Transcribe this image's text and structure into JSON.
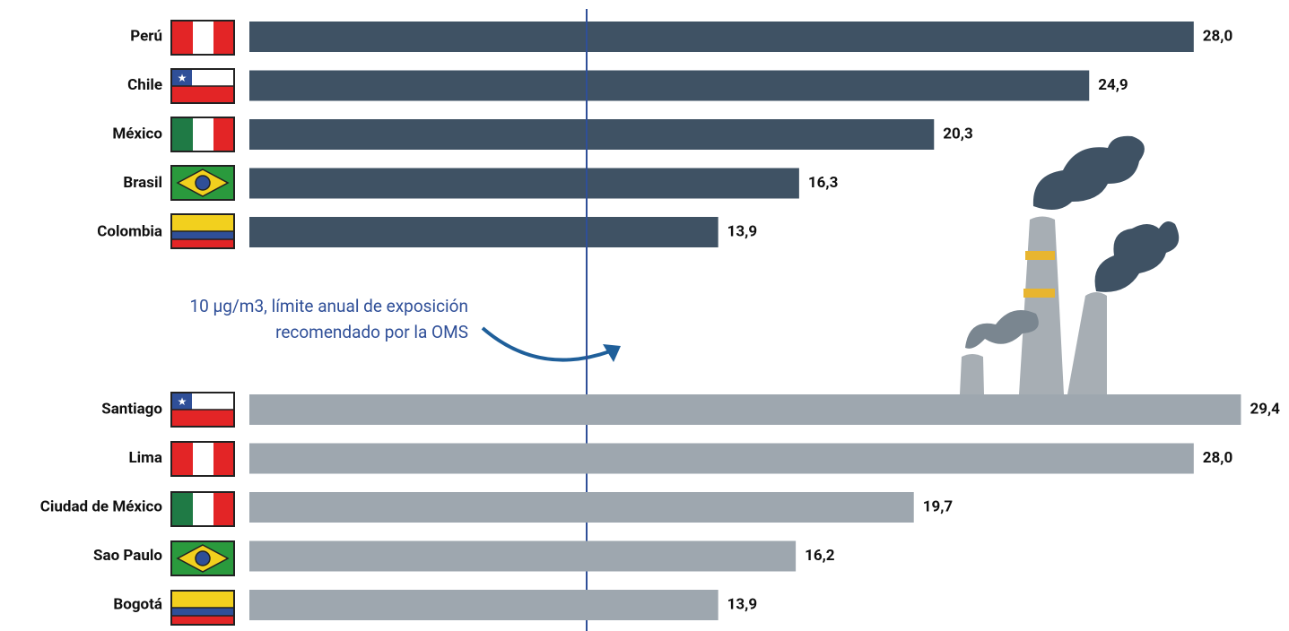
{
  "chart_data": [
    {
      "type": "bar",
      "orientation": "horizontal",
      "categories": [
        "Perú",
        "Chile",
        "México",
        "Brasil",
        "Colombia"
      ],
      "values": [
        28.0,
        24.9,
        20.3,
        16.3,
        13.9
      ],
      "value_labels": [
        "28,0",
        "24,9",
        "20,3",
        "16,3",
        "13,9"
      ],
      "color": "#3f5264",
      "xlim": [
        0,
        30
      ],
      "reference_line": {
        "value": 10,
        "label": [
          "10 µg/m3, límite anual de exposición",
          "recomendado por la OMS"
        ],
        "color": "#2f4f98"
      }
    },
    {
      "type": "bar",
      "orientation": "horizontal",
      "categories": [
        "Santiago",
        "Lima",
        "Ciudad de México",
        "Sao Paulo",
        "Bogotá"
      ],
      "values": [
        29.4,
        28.0,
        19.7,
        16.2,
        13.9
      ],
      "value_labels": [
        "29,4",
        "28,0",
        "19,7",
        "16,2",
        "13,9"
      ],
      "color": "#9ea7af",
      "xlim": [
        0,
        30
      ]
    }
  ]
}
